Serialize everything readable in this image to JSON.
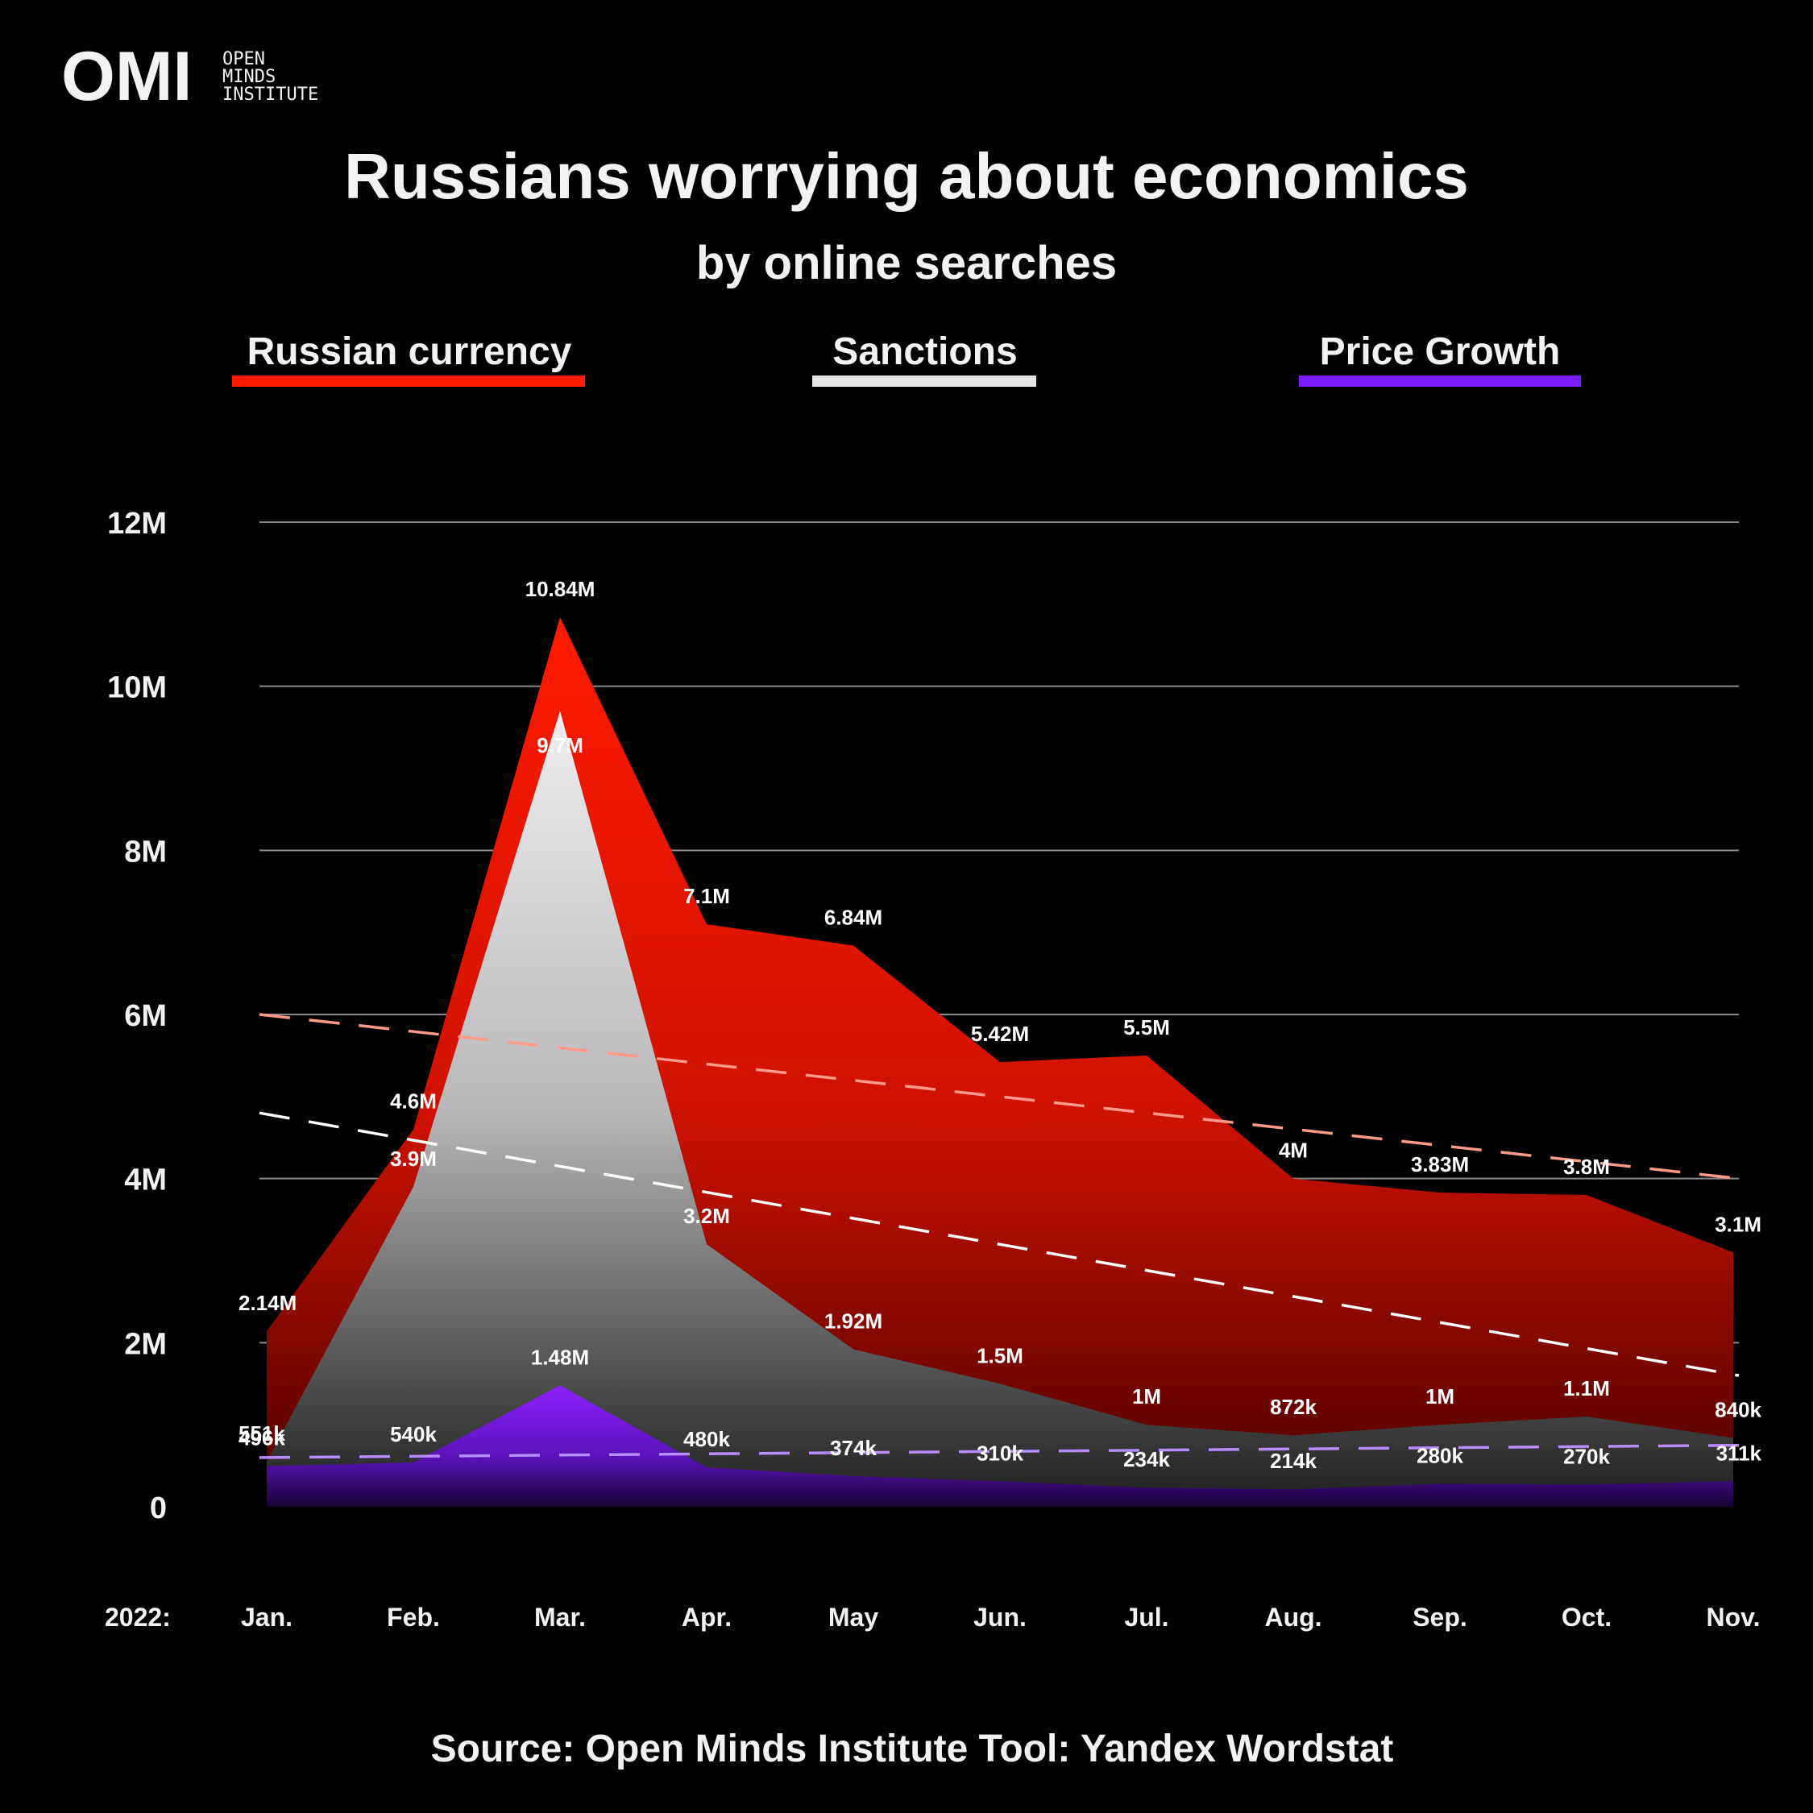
{
  "brand": {
    "logo_text": "OMI",
    "name_lines": [
      "OPEN",
      "MINDS",
      "INSTITUTE"
    ]
  },
  "header": {
    "title": "Russians worrying about economics",
    "subtitle": "by online searches"
  },
  "legend": [
    {
      "label": "Russian currency",
      "color": "#ff1a00"
    },
    {
      "label": "Sanctions",
      "color": "#e6e4e6"
    },
    {
      "label": "Price Growth",
      "color": "#7a1cff"
    }
  ],
  "footer": {
    "source": "Source: Open Minds Institute  Tool: Yandex Wordstat"
  },
  "colors": {
    "background": "#000000",
    "currency_top": "#ff1a00",
    "currency_bottom": "#5a0000",
    "sanctions_top": "#ebe9eb",
    "sanctions_bottom": "#2a2a2a",
    "price_top": "#8a1fff",
    "price_bottom": "#1a0533",
    "grid": "#8a8a8a",
    "text": "#f2f2f2"
  },
  "chart_data": {
    "type": "area",
    "title": "Russians worrying about economics",
    "subtitle": "by online searches",
    "year_label": "2022:",
    "categories": [
      "Jan.",
      "Feb.",
      "Mar.",
      "Apr.",
      "May",
      "Jun.",
      "Jul.",
      "Aug.",
      "Sep.",
      "Oct.",
      "Nov."
    ],
    "ylim": [
      0,
      12000000
    ],
    "yticks": [
      0,
      2000000,
      4000000,
      6000000,
      8000000,
      10000000,
      12000000
    ],
    "ytick_labels": [
      "0",
      "2M",
      "4M",
      "6M",
      "8M",
      "10M",
      "12M"
    ],
    "grid": true,
    "series": [
      {
        "key": "currency",
        "name": "Russian currency",
        "values": [
          2140000,
          4600000,
          10840000,
          7100000,
          6840000,
          5420000,
          5500000,
          4000000,
          3830000,
          3800000,
          3100000
        ],
        "labels": [
          "2.14M",
          "4.6M",
          "10.84M",
          "7.1M",
          "6.84M",
          "5.42M",
          "5.5M",
          "4M",
          "3.83M",
          "3.8M",
          "3.1M"
        ],
        "trend": [
          6000000,
          4000000
        ]
      },
      {
        "key": "sanctions",
        "name": "Sanctions",
        "values": [
          551000,
          3900000,
          9700000,
          3200000,
          1920000,
          1500000,
          1000000,
          872000,
          1000000,
          1100000,
          840000
        ],
        "labels": [
          "551k",
          "3.9M",
          "9.7M",
          "3.2M",
          "1.92M",
          "1.5M",
          "1M",
          "872k",
          "1M",
          "1.1M",
          "840k"
        ],
        "trend": [
          4800000,
          1600000
        ]
      },
      {
        "key": "price",
        "name": "Price Growth",
        "values": [
          496000,
          540000,
          1480000,
          480000,
          374000,
          310000,
          234000,
          214000,
          280000,
          270000,
          311000
        ],
        "labels": [
          "496k",
          "540k",
          "1.48M",
          "480k",
          "374k",
          "310k",
          "234k",
          "214k",
          "280k",
          "270k",
          "311k"
        ],
        "trend": [
          600000,
          750000
        ]
      }
    ]
  }
}
